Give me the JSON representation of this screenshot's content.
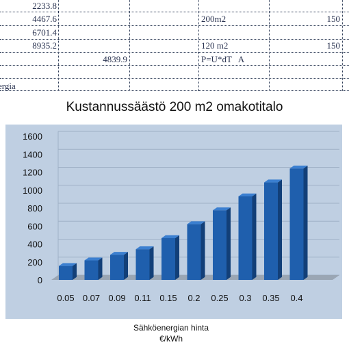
{
  "sheet": {
    "rows": [
      {
        "c2": "2233.8",
        "c3": "",
        "c4": "",
        "c5": ""
      },
      {
        "c2": "4467.6",
        "c3": "",
        "c4": "200m2",
        "c5": "150"
      },
      {
        "c2": "6701.4",
        "c3": "",
        "c4": "",
        "c5": ""
      },
      {
        "c2": "8935.2",
        "c3": "",
        "c4": "120 m2",
        "c5": "150"
      },
      {
        "c2": "",
        "c3": "4839.9",
        "c4": "P=U*dT   A",
        "c5": ""
      },
      {
        "c2": "",
        "c3": "",
        "c4": "",
        "c5": ""
      }
    ],
    "partial_label": "ergia"
  },
  "chart_data": {
    "type": "bar",
    "title": "Kustannussäästö 200 m2 omakotitalo",
    "xlabel_line1": "Sähköenergian hinta",
    "xlabel_line2": "€/kWh",
    "ylabel": "",
    "categories": [
      "0.05",
      "0.07",
      "0.09",
      "0.11",
      "0.15",
      "0.2",
      "0.25",
      "0.3",
      "0.35",
      "0.4"
    ],
    "values": [
      155,
      217,
      279,
      341,
      465,
      620,
      775,
      930,
      1085,
      1240
    ],
    "ylim": [
      0,
      1600
    ],
    "yticks": [
      0,
      200,
      400,
      600,
      800,
      1000,
      1200,
      1400,
      1600
    ],
    "grid": true,
    "legend": "none",
    "colors": {
      "bar_front": "#1f5fad",
      "bar_side": "#123f78",
      "bar_top": "#3b7fd0",
      "plot_bg": "#bfcfe2",
      "floor": "#9aa6b4",
      "grid": "#9fb0c6"
    }
  }
}
